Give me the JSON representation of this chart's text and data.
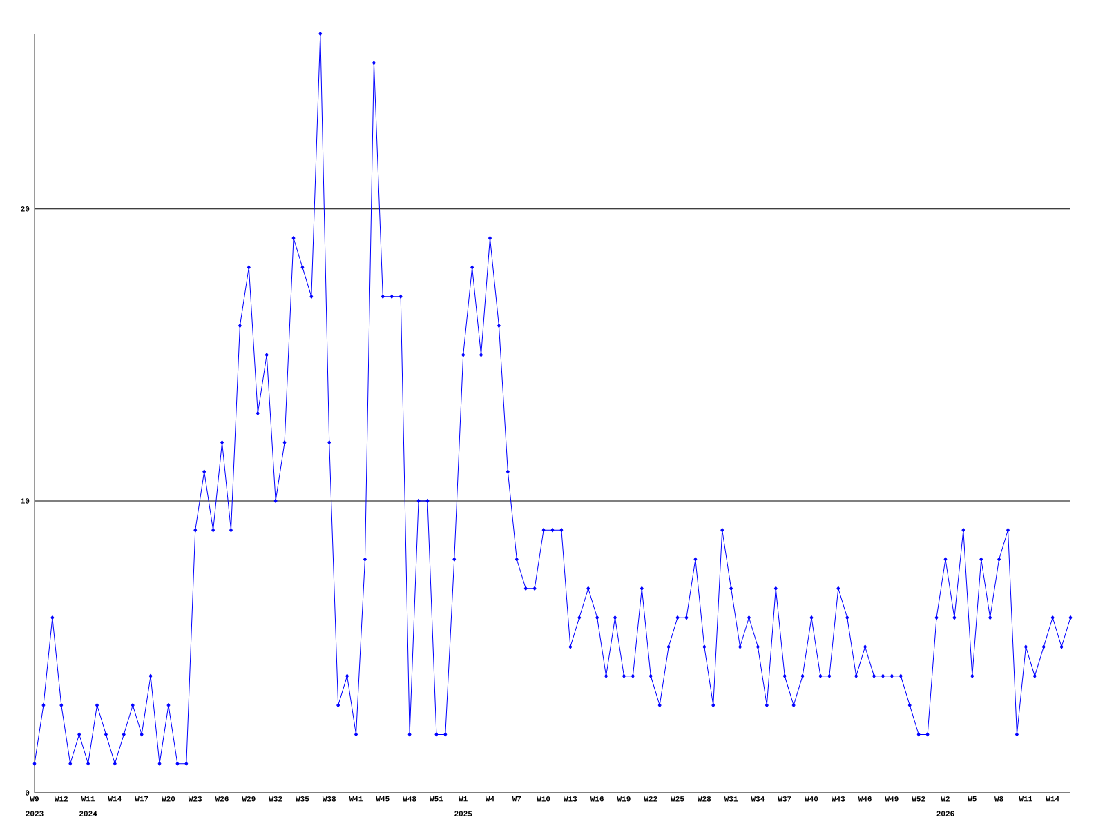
{
  "chart_data": {
    "type": "line",
    "categories": [
      "W9",
      null,
      null,
      "W12",
      null,
      null,
      "W11",
      null,
      null,
      "W14",
      null,
      null,
      "W17",
      null,
      null,
      "W20",
      null,
      null,
      "W23",
      null,
      null,
      "W26",
      null,
      null,
      "W29",
      null,
      null,
      "W32",
      null,
      null,
      "W35",
      null,
      null,
      "W38",
      null,
      null,
      "W41",
      null,
      null,
      "W45",
      null,
      null,
      "W48",
      null,
      null,
      "W51",
      null,
      null,
      "W1",
      null,
      null,
      "W4",
      null,
      null,
      "W7",
      null,
      null,
      "W10",
      null,
      null,
      "W13",
      null,
      null,
      "W16",
      null,
      null,
      "W19",
      null,
      null,
      "W22",
      null,
      null,
      "W25",
      null,
      null,
      "W28",
      null,
      null,
      "W31",
      null,
      null,
      "W34",
      null,
      null,
      "W37",
      null,
      null,
      "W40",
      null,
      null,
      "W43",
      null,
      null,
      "W46",
      null,
      null,
      "W49",
      null,
      null,
      "W52",
      null,
      null,
      "W2",
      null,
      null,
      "W5",
      null,
      null,
      "W8",
      null,
      null,
      "W11",
      null,
      null,
      "W14",
      null,
      null
    ],
    "values": [
      1,
      3,
      6,
      3,
      1,
      2,
      1,
      3,
      2,
      1,
      2,
      3,
      2,
      4,
      1,
      3,
      1,
      1,
      9,
      11,
      9,
      12,
      9,
      16,
      18,
      13,
      15,
      10,
      12,
      19,
      18,
      17,
      26,
      12,
      3,
      4,
      2,
      8,
      25,
      17,
      17,
      17,
      2,
      10,
      10,
      2,
      2,
      8,
      15,
      18,
      15,
      19,
      16,
      11,
      8,
      7,
      7,
      9,
      9,
      9,
      5,
      6,
      7,
      6,
      4,
      6,
      4,
      4,
      7,
      4,
      3,
      5,
      6,
      6,
      8,
      5,
      3,
      9,
      7,
      5,
      6,
      5,
      3,
      7,
      4,
      3,
      4,
      6,
      4,
      4,
      7,
      6,
      4,
      5,
      4,
      4,
      4,
      4,
      3,
      2,
      2,
      6,
      8,
      6,
      9,
      4,
      8,
      6,
      8,
      9,
      2,
      5,
      4,
      5,
      6,
      5,
      6
    ],
    "color": "#0000ff",
    "marker": "diamond",
    "line_style": "solid",
    "ylim": [
      0,
      26
    ],
    "yticks": [
      0,
      10,
      20
    ],
    "grid": "y",
    "annotations": [
      "2023",
      "2024",
      "2025",
      "2026"
    ]
  }
}
